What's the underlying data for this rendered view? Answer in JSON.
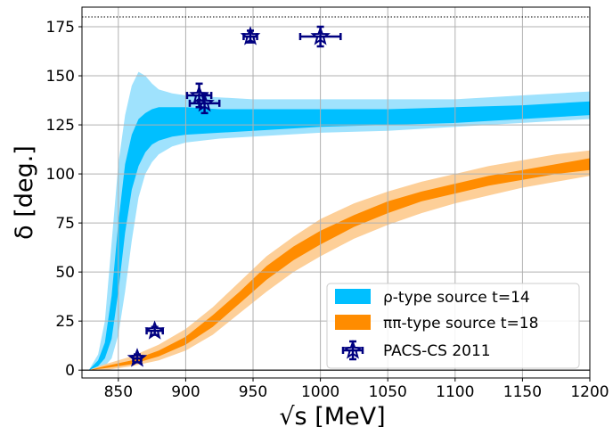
{
  "chart_data": {
    "type": "line",
    "xlabel": "√s [MeV]",
    "ylabel": "δ [deg.]",
    "xlim": [
      823,
      1200
    ],
    "ylim": [
      -4,
      185
    ],
    "x_ticks": [
      850,
      900,
      950,
      1000,
      1050,
      1100,
      1150,
      1200
    ],
    "y_ticks": [
      0,
      25,
      50,
      75,
      100,
      125,
      150,
      175
    ],
    "grid": true,
    "legend_position": "bottom-right",
    "reference_lines": [
      {
        "y": 0,
        "style": "solid"
      },
      {
        "y": 180,
        "style": "dotted"
      }
    ],
    "colors": {
      "rho_inner": "#00bfff",
      "rho_outer": "#9fe2fd",
      "pipi_inner": "#ff8c00",
      "pipi_outer": "#fdcf98",
      "marker": "#000080"
    },
    "bands": [
      {
        "name": "ρ-type source t=14",
        "color": "#00bfff",
        "outer_color": "#9fe2fd",
        "x": [
          828,
          835,
          840,
          845,
          850,
          855,
          860,
          865,
          870,
          875,
          880,
          890,
          900,
          925,
          950,
          1000,
          1050,
          1100,
          1150,
          1200
        ],
        "inner_lo": [
          0,
          2,
          6,
          16,
          40,
          70,
          92,
          104,
          111,
          115,
          117,
          119,
          120,
          121,
          122,
          124,
          125,
          126,
          128,
          130
        ],
        "inner_hi": [
          0,
          5,
          14,
          38,
          75,
          105,
          120,
          128,
          131,
          133,
          134,
          134,
          134,
          133,
          133,
          133,
          133,
          134,
          135,
          137
        ],
        "outer_lo": [
          0,
          0,
          2,
          6,
          18,
          40,
          66,
          88,
          100,
          106,
          110,
          114,
          116,
          118,
          119,
          121,
          122,
          124,
          126,
          128
        ],
        "outer_hi": [
          0,
          8,
          25,
          65,
          105,
          130,
          145,
          152,
          150,
          146,
          143,
          141,
          140,
          139,
          138,
          138,
          138,
          138,
          140,
          142
        ]
      },
      {
        "name": "ππ-type source t=18",
        "color": "#ff8c00",
        "outer_color": "#fdcf98",
        "x": [
          828,
          840,
          860,
          880,
          900,
          920,
          940,
          960,
          980,
          1000,
          1025,
          1050,
          1075,
          1100,
          1125,
          1150,
          1175,
          1200
        ],
        "inner_lo": [
          0,
          1,
          3,
          7,
          13,
          22,
          34,
          46,
          56,
          64,
          73,
          80,
          86,
          90,
          94,
          97,
          100,
          102
        ],
        "inner_hi": [
          0,
          2,
          5,
          10,
          17,
          28,
          40,
          53,
          63,
          71,
          79,
          86,
          91,
          95,
          99,
          102,
          105,
          108
        ],
        "outer_lo": [
          0,
          0,
          2,
          5,
          10,
          18,
          29,
          40,
          50,
          58,
          67,
          74,
          80,
          85,
          89,
          93,
          96,
          99
        ],
        "outer_hi": [
          0,
          3,
          7,
          13,
          21,
          32,
          45,
          58,
          68,
          77,
          85,
          91,
          96,
          100,
          104,
          107,
          110,
          112
        ]
      }
    ],
    "points": {
      "name": "PACS-CS 2011",
      "color": "#000080",
      "data": [
        {
          "x": 864,
          "y": 6,
          "xerr": 3,
          "yerr": 2
        },
        {
          "x": 877,
          "y": 20,
          "xerr": 6,
          "yerr": 2
        },
        {
          "x": 910,
          "y": 140,
          "xerr": 9,
          "yerr": 6
        },
        {
          "x": 914,
          "y": 136,
          "xerr": 11,
          "yerr": 5
        },
        {
          "x": 948,
          "y": 170,
          "xerr": 5,
          "yerr": 3
        },
        {
          "x": 1000,
          "y": 170,
          "xerr": 15,
          "yerr": 5
        }
      ]
    }
  }
}
